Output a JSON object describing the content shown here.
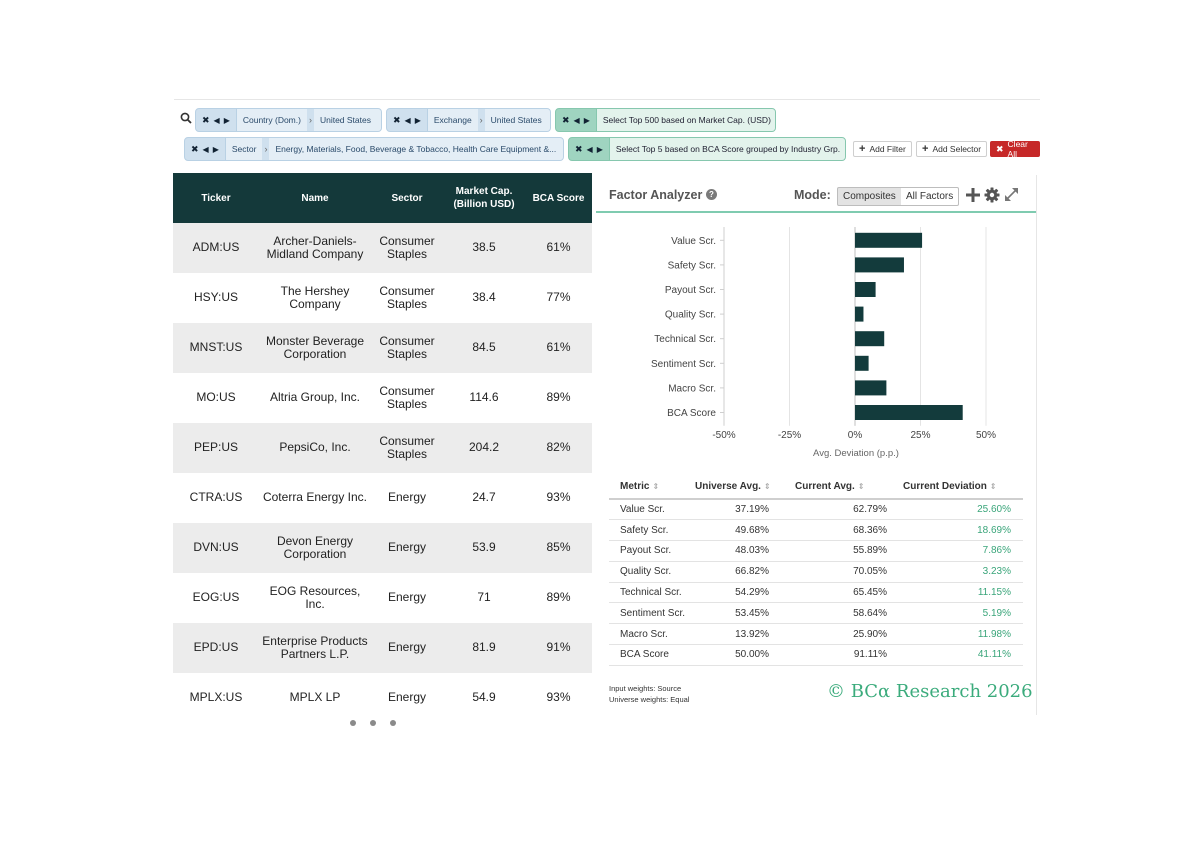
{
  "filters": {
    "row1": [
      {
        "kind": "blue",
        "field": "Country (Dom.)",
        "value": "United States"
      },
      {
        "kind": "blue",
        "field": "Exchange",
        "value": "United States"
      },
      {
        "kind": "green",
        "value": "Select Top 500 based on Market Cap. (USD)"
      }
    ],
    "row2": [
      {
        "kind": "blue",
        "field": "Sector",
        "value": "Energy, Materials, Food, Beverage & Tobacco, Health Care Equipment &..."
      },
      {
        "kind": "green",
        "value": "Select Top 5 based on BCA Score grouped by Industry Grp."
      }
    ],
    "buttons": {
      "add_filter": "Add Filter",
      "add_selector": "Add Selector",
      "clear_all": "Clear All"
    }
  },
  "grid": {
    "columns": [
      "Ticker",
      "Name",
      "Sector",
      "Market Cap. (Billion USD)",
      "BCA Score"
    ],
    "rows": [
      {
        "ticker": "ADM:US",
        "name": "Archer-Daniels-Midland Company",
        "sector": "Consumer Staples",
        "mcap": "38.5",
        "score": "61%"
      },
      {
        "ticker": "HSY:US",
        "name": "The Hershey Company",
        "sector": "Consumer Staples",
        "mcap": "38.4",
        "score": "77%"
      },
      {
        "ticker": "MNST:US",
        "name": "Monster Beverage Corporation",
        "sector": "Consumer Staples",
        "mcap": "84.5",
        "score": "61%"
      },
      {
        "ticker": "MO:US",
        "name": "Altria Group, Inc.",
        "sector": "Consumer Staples",
        "mcap": "114.6",
        "score": "89%"
      },
      {
        "ticker": "PEP:US",
        "name": "PepsiCo, Inc.",
        "sector": "Consumer Staples",
        "mcap": "204.2",
        "score": "82%"
      },
      {
        "ticker": "CTRA:US",
        "name": "Coterra Energy Inc.",
        "sector": "Energy",
        "mcap": "24.7",
        "score": "93%"
      },
      {
        "ticker": "DVN:US",
        "name": "Devon Energy Corporation",
        "sector": "Energy",
        "mcap": "53.9",
        "score": "85%"
      },
      {
        "ticker": "EOG:US",
        "name": "EOG Resources, Inc.",
        "sector": "Energy",
        "mcap": "71",
        "score": "89%"
      },
      {
        "ticker": "EPD:US",
        "name": "Enterprise Products Partners L.P.",
        "sector": "Energy",
        "mcap": "81.9",
        "score": "91%"
      },
      {
        "ticker": "MPLX:US",
        "name": "MPLX LP",
        "sector": "Energy",
        "mcap": "54.9",
        "score": "93%"
      }
    ]
  },
  "panel": {
    "title": "Factor Analyzer",
    "mode_label": "Mode:",
    "modes": [
      "Composites",
      "All Factors"
    ],
    "active_mode": "Composites"
  },
  "chart_data": {
    "type": "bar",
    "orientation": "horizontal",
    "categories": [
      "Value Scr.",
      "Safety Scr.",
      "Payout Scr.",
      "Quality Scr.",
      "Technical Scr.",
      "Sentiment Scr.",
      "Macro Scr.",
      "BCA Score"
    ],
    "values": [
      25.6,
      18.69,
      7.86,
      3.23,
      11.15,
      5.19,
      11.98,
      41.11
    ],
    "xlabel": "Avg. Deviation (p.p.)",
    "xticks": [
      -50,
      -25,
      0,
      25,
      50
    ],
    "xtick_labels": [
      "-50%",
      "-25%",
      "0%",
      "25%",
      "50%"
    ],
    "xlim": [
      -50,
      50
    ],
    "color": "#133b3c"
  },
  "metrics": {
    "headers": [
      "Metric",
      "Universe Avg.",
      "Current Avg.",
      "Current Deviation"
    ],
    "rows": [
      [
        "Value Scr.",
        "37.19%",
        "62.79%",
        "25.60%"
      ],
      [
        "Safety Scr.",
        "49.68%",
        "68.36%",
        "18.69%"
      ],
      [
        "Payout Scr.",
        "48.03%",
        "55.89%",
        "7.86%"
      ],
      [
        "Quality Scr.",
        "66.82%",
        "70.05%",
        "3.23%"
      ],
      [
        "Technical Scr.",
        "54.29%",
        "65.45%",
        "11.15%"
      ],
      [
        "Sentiment Scr.",
        "53.45%",
        "58.64%",
        "5.19%"
      ],
      [
        "Macro Scr.",
        "13.92%",
        "25.90%",
        "11.98%"
      ],
      [
        "BCA Score",
        "50.00%",
        "91.11%",
        "41.11%"
      ]
    ]
  },
  "footnote": {
    "line1": "Input weights: Source",
    "line2": "Universe weights: Equal"
  },
  "brand": "© BCα Research 2026",
  "colors": {
    "header_bg": "#14393a",
    "accent_green": "#3bab7c",
    "chip_blue": "#cfe0ee",
    "chip_green": "#9fd4c0",
    "clear_red": "#c62828"
  }
}
